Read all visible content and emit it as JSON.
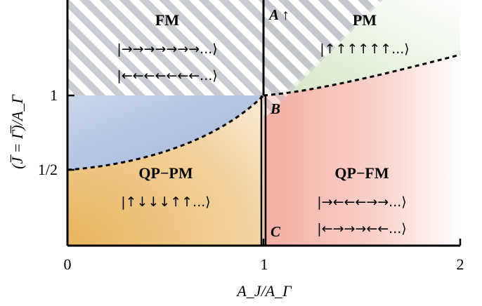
{
  "axes": {
    "x_label": "A_J/A_Γ",
    "y_label": "(J̅ = Γ̅)/A_Γ",
    "x_ticks": [
      "0",
      "1",
      "2"
    ],
    "y_ticks": [
      "1/2",
      "1"
    ]
  },
  "regions": {
    "fm": {
      "name": "FM",
      "states": [
        "|→→→→→→→...⟩",
        "|←←←←←←←...⟩"
      ]
    },
    "pm": {
      "name": "PM",
      "states": [
        "|↑↑↑↑↑↑...⟩"
      ]
    },
    "qp_pm": {
      "name": "QP−PM",
      "states": [
        "|↑↓↓↓↑↑...⟩"
      ]
    },
    "qp_fm": {
      "name": "QP−FM",
      "states": [
        "|→←←←→→...⟩",
        "|←→→→←←...⟩"
      ]
    }
  },
  "points": {
    "a": "A ↑",
    "b": "B",
    "c": "C"
  },
  "colors": {
    "hatch": "#bfc3cc",
    "fm_fill": "#a9bddc",
    "pm_fill": "#dceacc",
    "qp_pm_fill": "#edc07a",
    "qp_fm_fill": "#f4b8ae",
    "line": "#000000"
  }
}
